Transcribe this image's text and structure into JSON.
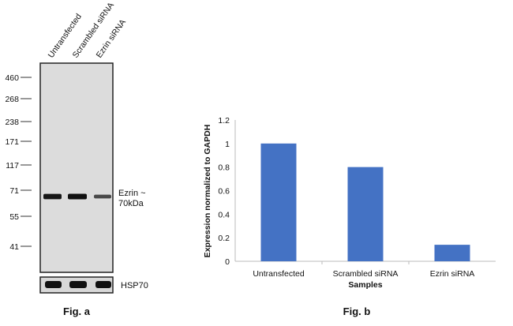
{
  "fig_a": {
    "caption": "Fig. a",
    "lane_labels": [
      "Untransfected",
      "Scrambled siRNA",
      "Ezrin siRNA"
    ],
    "markers": [
      "460",
      "268",
      "238",
      "171",
      "117",
      "71",
      "55",
      "41"
    ],
    "band_label_line1": "Ezrin ~",
    "band_label_line2": "70kDa",
    "band_intensity": [
      0.95,
      1.0,
      0.45
    ],
    "loading_control": "HSP70"
  },
  "fig_b": {
    "caption": "Fig. b"
  },
  "chart_data": {
    "type": "bar",
    "title": "",
    "categories": [
      "Untransfected",
      "Scrambled siRNA",
      "Ezrin siRNA"
    ],
    "values": [
      1.0,
      0.8,
      0.14
    ],
    "xlabel": "Samples",
    "ylabel": "Expression normalized to GAPDH",
    "ylim": [
      0,
      1.2
    ],
    "yticks": [
      "0",
      "0.2",
      "0.4",
      "0.6",
      "0.8",
      "1",
      "1.2"
    ],
    "grid": false,
    "bar_color": "#4472C4"
  }
}
